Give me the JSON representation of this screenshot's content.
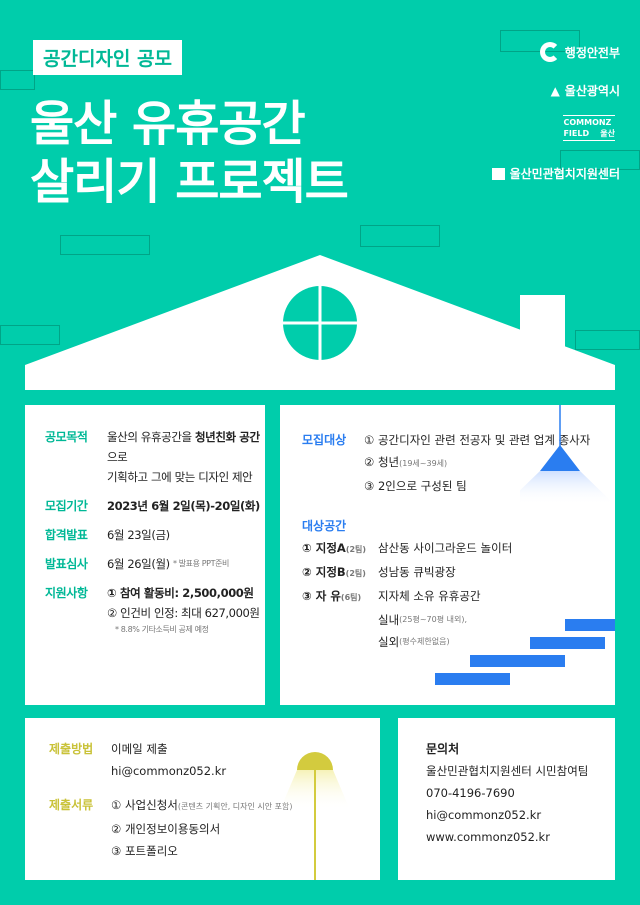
{
  "header": {
    "tag": "공간디자인 공모",
    "title_line1": "울산 유휴공간",
    "title_line2": "살리기 프로젝트"
  },
  "logos": {
    "ministry": "행정안전부",
    "city": "울산광역시",
    "commonz_line1": "COMMONZ",
    "commonz_line2": "FIELD",
    "commonz_sub": "울산",
    "center": "울산민관협치지원센터"
  },
  "colors": {
    "background": "#00cdab",
    "accent_teal": "#00b896",
    "accent_blue": "#2a7df0",
    "accent_yellow": "#c9c238"
  },
  "left_panel": {
    "purpose": {
      "label": "공모목적",
      "line1_a": "울산의 유휴공간을 ",
      "line1_b": "청년친화 공간",
      "line1_c": "으로",
      "line2": "기획하고 그에 맞는 디자인 제안"
    },
    "period": {
      "label": "모집기간",
      "value": "2023년 6월 2일(목)-20일(화)"
    },
    "announce": {
      "label": "합격발표",
      "value": "6월 23일(금)"
    },
    "review": {
      "label": "발표심사",
      "value": "6월 26일(월)",
      "note": "* 발표용 PPT준비"
    },
    "support": {
      "label": "지원사항",
      "item1": "① 참여 활동비: 2,500,000원",
      "item2": "② 인건비 인정: 최대 627,000원",
      "note": "* 8.8% 기타소득비 공제 예정"
    }
  },
  "right_panel": {
    "target": {
      "label": "모집대상",
      "item1": "① 공간디자인 관련 전공자 및 관련 업계 종사자",
      "item2": "② 청년",
      "item2_note": "(19세~39세)",
      "item3": "③ 2인으로 구성된 팀"
    },
    "spaces": {
      "label": "대상공간",
      "items": [
        {
          "name": "① 지정A",
          "teams": "(2팀)",
          "desc": "삼산동 사이그라운드 놀이터"
        },
        {
          "name": "② 지정B",
          "teams": "(2팀)",
          "desc": "성남동 큐빅광장"
        },
        {
          "name": "③ 자 유",
          "teams": "(6팀)",
          "desc": "지자체 소유 유휴공간"
        }
      ],
      "indoor": "실내",
      "indoor_note": "(25평~70평 내외),",
      "outdoor": "실외",
      "outdoor_note": "(평수제한없음)"
    }
  },
  "submit_panel": {
    "method": {
      "label": "제출방법",
      "value": "이메일 제출",
      "email": "hi@commonz052.kr"
    },
    "docs": {
      "label": "제출서류",
      "item1": "① 사업신청서",
      "item1_note": "(콘텐츠 기획안, 디자인 시안 포함)",
      "item2": "② 개인정보이용동의서",
      "item3": "③ 포트폴리오"
    }
  },
  "contact_panel": {
    "title": "문의처",
    "org": "울산민관협치지원센터 시민참여팀",
    "phone": "070-4196-7690",
    "email": "hi@commonz052.kr",
    "web": "www.commonz052.kr"
  }
}
